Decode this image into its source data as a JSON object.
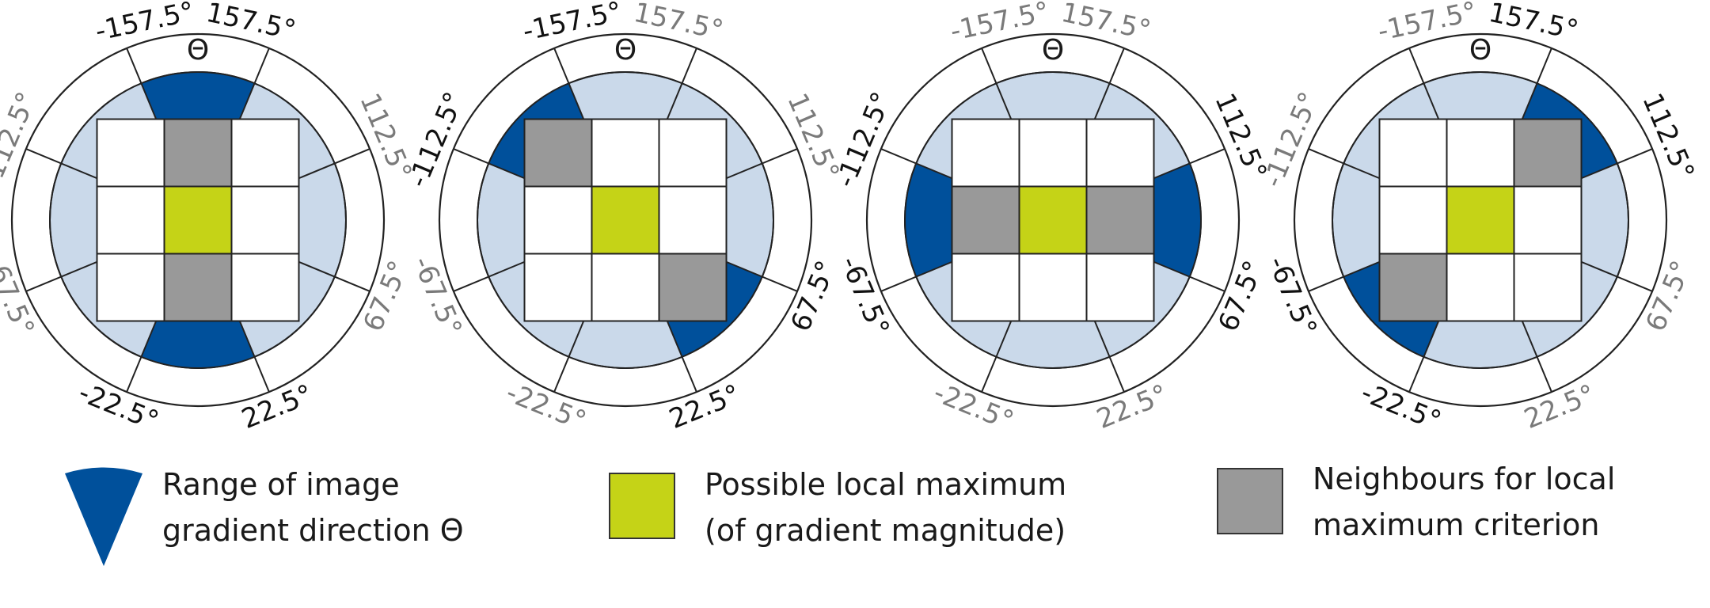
{
  "colors": {
    "range_blue": "#00509b",
    "light_blue": "#cad9ea",
    "center_green": "#c5d317",
    "neighbour_gray": "#999999",
    "active_label": "#111111",
    "inactive_label": "#7a7a7a"
  },
  "theta_symbol": "Θ",
  "angle_labels": {
    "top_left": "-157.5°",
    "top_right": "157.5°",
    "upper_left": "-112.5°",
    "upper_right": "112.5°",
    "lower_left": "-67.5°",
    "lower_right": "67.5°",
    "bottom_left": "-22.5°",
    "bottom_right": "22.5°"
  },
  "diagrams": [
    {
      "id": "vertical",
      "active_pair": "vertical",
      "neighbours": [
        [
          0,
          1
        ],
        [
          2,
          1
        ]
      ]
    },
    {
      "id": "diagonal-main",
      "active_pair": "diag_main",
      "neighbours": [
        [
          0,
          0
        ],
        [
          2,
          2
        ]
      ]
    },
    {
      "id": "horizontal",
      "active_pair": "horizontal",
      "neighbours": [
        [
          1,
          0
        ],
        [
          1,
          2
        ]
      ]
    },
    {
      "id": "diagonal-anti",
      "active_pair": "diag_anti",
      "neighbours": [
        [
          0,
          2
        ],
        [
          2,
          0
        ]
      ]
    }
  ],
  "legend": {
    "range": {
      "line1": "Range of image",
      "line2": "gradient direction Θ"
    },
    "maximum": {
      "line1": "Possible local maximum",
      "line2": "(of gradient magnitude)"
    },
    "neighbours": {
      "line1": "Neighbours for local",
      "line2": "maximum criterion"
    }
  }
}
